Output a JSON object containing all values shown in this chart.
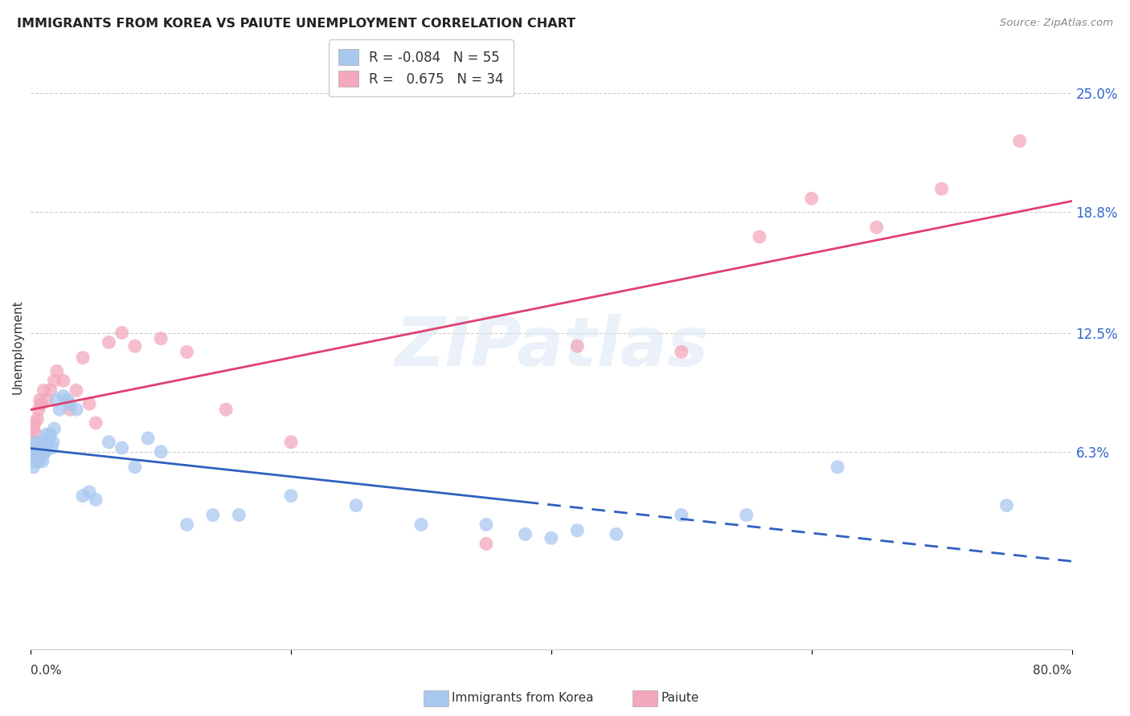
{
  "title": "IMMIGRANTS FROM KOREA VS PAIUTE UNEMPLOYMENT CORRELATION CHART",
  "source": "Source: ZipAtlas.com",
  "ylabel": "Unemployment",
  "yticks_labels": [
    "25.0%",
    "18.8%",
    "12.5%",
    "6.3%"
  ],
  "ytick_values": [
    0.25,
    0.188,
    0.125,
    0.063
  ],
  "xlim": [
    0.0,
    0.8
  ],
  "ylim": [
    -0.04,
    0.275
  ],
  "korea_R": -0.084,
  "korea_N": "55",
  "paiute_R": 0.675,
  "paiute_N": "34",
  "korea_color": "#a8c8f0",
  "paiute_color": "#f4a8bc",
  "korea_line_color": "#3060c0",
  "paiute_line_color": "#e04070",
  "korea_line_solid_end": 0.38,
  "watermark_text": "ZIPatlas",
  "background_color": "#ffffff",
  "grid_color": "#cccccc",
  "korea_scatter_x": [
    0.001,
    0.002,
    0.002,
    0.003,
    0.003,
    0.004,
    0.004,
    0.005,
    0.005,
    0.006,
    0.006,
    0.007,
    0.007,
    0.008,
    0.008,
    0.009,
    0.01,
    0.01,
    0.011,
    0.012,
    0.013,
    0.014,
    0.015,
    0.016,
    0.017,
    0.018,
    0.02,
    0.022,
    0.025,
    0.028,
    0.03,
    0.035,
    0.04,
    0.045,
    0.05,
    0.06,
    0.07,
    0.08,
    0.09,
    0.1,
    0.12,
    0.14,
    0.16,
    0.2,
    0.25,
    0.3,
    0.35,
    0.38,
    0.4,
    0.42,
    0.45,
    0.5,
    0.55,
    0.62,
    0.75
  ],
  "korea_scatter_y": [
    0.06,
    0.055,
    0.063,
    0.058,
    0.065,
    0.062,
    0.068,
    0.06,
    0.065,
    0.058,
    0.063,
    0.065,
    0.06,
    0.068,
    0.063,
    0.058,
    0.065,
    0.062,
    0.063,
    0.072,
    0.068,
    0.07,
    0.072,
    0.065,
    0.068,
    0.075,
    0.09,
    0.085,
    0.092,
    0.09,
    0.088,
    0.085,
    0.04,
    0.042,
    0.038,
    0.068,
    0.065,
    0.055,
    0.07,
    0.063,
    0.025,
    0.03,
    0.03,
    0.04,
    0.035,
    0.025,
    0.025,
    0.02,
    0.018,
    0.022,
    0.02,
    0.03,
    0.03,
    0.055,
    0.035
  ],
  "paiute_scatter_x": [
    0.001,
    0.002,
    0.003,
    0.004,
    0.005,
    0.006,
    0.007,
    0.008,
    0.01,
    0.012,
    0.015,
    0.018,
    0.02,
    0.025,
    0.03,
    0.035,
    0.04,
    0.045,
    0.05,
    0.06,
    0.07,
    0.08,
    0.1,
    0.12,
    0.15,
    0.2,
    0.35,
    0.42,
    0.5,
    0.56,
    0.6,
    0.65,
    0.7,
    0.76
  ],
  "paiute_scatter_y": [
    0.068,
    0.075,
    0.078,
    0.072,
    0.08,
    0.085,
    0.09,
    0.088,
    0.095,
    0.09,
    0.095,
    0.1,
    0.105,
    0.1,
    0.085,
    0.095,
    0.112,
    0.088,
    0.078,
    0.12,
    0.125,
    0.118,
    0.122,
    0.115,
    0.085,
    0.068,
    0.015,
    0.118,
    0.115,
    0.175,
    0.195,
    0.18,
    0.2,
    0.225
  ],
  "legend_korea_label": "R = -0.084   N = 55",
  "legend_paiute_label": "R =   0.675   N = 34"
}
